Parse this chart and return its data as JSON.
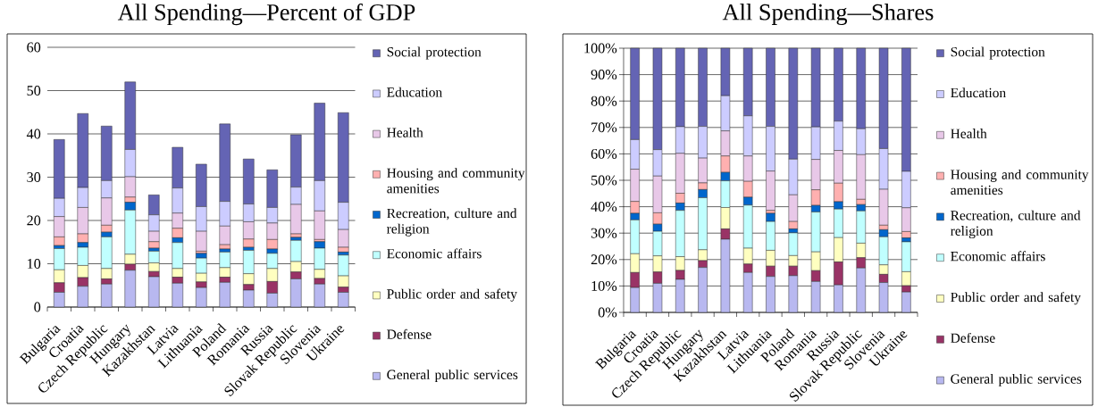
{
  "chart_data": [
    {
      "type": "bar",
      "title": "All Spending—Percent of GDP",
      "stacked": true,
      "grid": "y",
      "legend": "right",
      "categories": [
        "Bulgaria",
        "Croatia",
        "Czech Republic",
        "Hungary",
        "Kazakhstan",
        "Latvia",
        "Lithuania",
        "Poland",
        "Romania",
        "Russia",
        "Slovak Republic",
        "Slovenia",
        "Ukraine"
      ],
      "ylim": [
        0,
        60
      ],
      "yticks": [
        0,
        10,
        20,
        30,
        40,
        50,
        60
      ],
      "series": [
        {
          "name": "General public services",
          "color": "#b8b8f0",
          "values": [
            3.4,
            4.8,
            5.3,
            8.5,
            7.0,
            5.5,
            4.5,
            5.7,
            3.9,
            3.2,
            6.5,
            5.3,
            3.4
          ]
        },
        {
          "name": "Defense",
          "color": "#993366",
          "values": [
            2.2,
            2.0,
            1.2,
            1.4,
            1.2,
            1.4,
            1.3,
            1.2,
            1.3,
            2.7,
            1.6,
            1.3,
            1.2
          ]
        },
        {
          "name": "Public order and safety",
          "color": "#ffffc0",
          "values": [
            3.0,
            2.8,
            2.4,
            2.3,
            2.0,
            2.0,
            2.0,
            2.2,
            2.5,
            3.0,
            2.4,
            2.1,
            2.6
          ]
        },
        {
          "name": "Economic affairs",
          "color": "#c0ffff",
          "values": [
            4.9,
            4.2,
            7.3,
            10.2,
            2.7,
            6.0,
            3.5,
            3.6,
            5.4,
            3.5,
            4.9,
            4.9,
            4.8
          ]
        },
        {
          "name": "Recreation, culture and religion",
          "color": "#0066cc",
          "values": [
            0.7,
            1.1,
            1.1,
            1.8,
            0.7,
            1.1,
            1.1,
            0.7,
            0.7,
            1.0,
            0.7,
            1.5,
            0.7
          ]
        },
        {
          "name": "Housing and community amenities",
          "color": "#ffb0b0",
          "values": [
            2.0,
            2.0,
            1.6,
            1.2,
            1.5,
            2.2,
            0.5,
            1.0,
            1.9,
            2.2,
            0.8,
            0.5,
            1.1
          ]
        },
        {
          "name": "Health",
          "color": "#e8c8e8",
          "values": [
            4.7,
            6.1,
            6.3,
            4.7,
            2.4,
            3.5,
            4.6,
            4.3,
            4.0,
            3.8,
            6.8,
            6.6,
            4.1
          ]
        },
        {
          "name": "Education",
          "color": "#ccccff",
          "values": [
            4.2,
            4.6,
            4.0,
            6.3,
            3.8,
            5.8,
            5.7,
            5.7,
            4.1,
            3.6,
            4.0,
            7.0,
            6.3
          ]
        },
        {
          "name": "Social protection",
          "color": "#6464b4",
          "values": [
            13.6,
            17.1,
            12.6,
            15.6,
            4.6,
            9.4,
            9.8,
            17.9,
            10.4,
            8.7,
            12.1,
            17.9,
            20.7
          ]
        }
      ]
    },
    {
      "type": "bar",
      "title": "All Spending—Shares",
      "stacked": true,
      "grid": "y",
      "legend": "right",
      "categories": [
        "Bulgaria",
        "Croatia",
        "Czech Republic",
        "Hungary",
        "Kazakhstan",
        "Latvia",
        "Lithuania",
        "Poland",
        "Romania",
        "Russia",
        "Slovak Republic",
        "Slovenia",
        "Ukraine"
      ],
      "ylim": [
        0,
        100
      ],
      "yticks": [
        {
          "value": 0,
          "label": "0%"
        },
        {
          "value": 10,
          "label": "10%"
        },
        {
          "value": 20,
          "label": "20%"
        },
        {
          "value": 30,
          "label": "30%"
        },
        {
          "value": 40,
          "label": "40%"
        },
        {
          "value": 50,
          "label": "50%"
        },
        {
          "value": 60,
          "label": "60%"
        },
        {
          "value": 70,
          "label": "70%"
        },
        {
          "value": 80,
          "label": "80%"
        },
        {
          "value": 90,
          "label": "90%"
        },
        {
          "value": 100,
          "label": "100%"
        }
      ],
      "series": [
        {
          "name": "General public services",
          "color": "#b8b8f0",
          "values": [
            9.4,
            11.0,
            12.5,
            17.0,
            27.7,
            15.1,
            13.6,
            13.9,
            11.7,
            10.4,
            16.8,
            11.3,
            7.7
          ]
        },
        {
          "name": "Defense",
          "color": "#993366",
          "values": [
            5.7,
            4.3,
            3.4,
            2.6,
            3.9,
            3.2,
            3.9,
            3.6,
            4.1,
            8.7,
            3.9,
            3.1,
            2.4
          ]
        },
        {
          "name": "Public order and safety",
          "color": "#ffffc0",
          "values": [
            7.1,
            6.1,
            5.2,
            4.1,
            8.1,
            6.0,
            6.0,
            4.0,
            7.1,
            9.2,
            5.5,
            3.6,
            5.3
          ]
        },
        {
          "name": "Economic affairs",
          "color": "#c0ffff",
          "values": [
            12.8,
            9.3,
            17.5,
            19.7,
            10.1,
            16.3,
            10.9,
            8.6,
            15.1,
            10.8,
            12.2,
            10.6,
            11.3
          ]
        },
        {
          "name": "Recreation, culture and religion",
          "color": "#0066cc",
          "values": [
            2.5,
            2.7,
            2.8,
            3.1,
            3.2,
            3.0,
            3.1,
            1.5,
            2.5,
            2.8,
            2.4,
            2.7,
            1.5
          ]
        },
        {
          "name": "Housing and community amenities",
          "color": "#ffb0b0",
          "values": [
            4.5,
            4.3,
            3.7,
            2.5,
            6.2,
            6.0,
            1.1,
            2.8,
            5.9,
            7.0,
            2.0,
            1.7,
            2.4
          ]
        },
        {
          "name": "Health",
          "color": "#e8c8e8",
          "values": [
            12.2,
            13.9,
            15.1,
            9.4,
            9.5,
            9.6,
            14.9,
            10.1,
            11.5,
            12.4,
            16.9,
            13.6,
            9.0
          ]
        },
        {
          "name": "Education",
          "color": "#ccccff",
          "values": [
            11.2,
            10.0,
            10.1,
            12.0,
            13.3,
            15.2,
            16.9,
            13.5,
            12.3,
            11.1,
            9.8,
            15.4,
            13.8
          ]
        },
        {
          "name": "Social protection",
          "color": "#6464b4",
          "values": [
            34.6,
            38.4,
            29.7,
            29.6,
            18.0,
            25.6,
            29.6,
            42.0,
            29.8,
            27.6,
            30.5,
            38.0,
            46.6
          ]
        }
      ]
    }
  ]
}
